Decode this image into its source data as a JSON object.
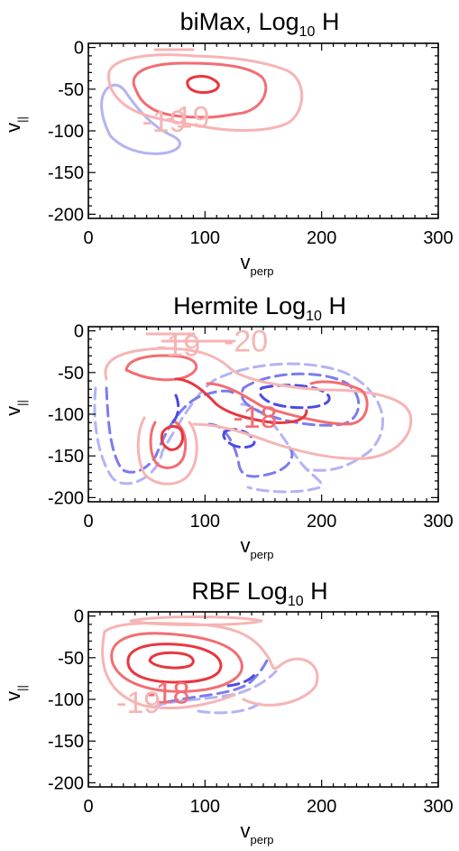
{
  "colors": {
    "positive_strong": "#e8373f",
    "positive_mid": "#f26d72",
    "positive_light": "#f7b4b4",
    "negative_strong": "#4b4be6",
    "negative_mid": "#7c7cee",
    "negative_light": "#b3b3f4"
  },
  "chart_data": [
    {
      "type": "contour",
      "title_main": "biMax, Log",
      "title_sub": "10",
      "title_tail": " H",
      "xlabel_main": "v",
      "xlabel_sub": "perp",
      "ylabel_main": "v",
      "ylabel_sub": "||",
      "xlim": [
        0,
        300
      ],
      "ylim": [
        -205,
        5
      ],
      "xticks": [
        "0",
        "100",
        "200",
        "300"
      ],
      "yticks": [
        "0",
        "-50",
        "-100",
        "-150",
        "-200"
      ],
      "contour_labels": [
        {
          "text": "-19",
          "x": 85,
          "y": -83,
          "level": "light"
        },
        {
          "text": "-19",
          "x": 65,
          "y": -88,
          "level": "light"
        }
      ]
    },
    {
      "type": "contour",
      "title_main": "Hermite Log",
      "title_sub": "10",
      "title_tail": " H",
      "xlabel_main": "v",
      "xlabel_sub": "perp",
      "ylabel_main": "v",
      "ylabel_sub": "||",
      "xlim": [
        0,
        300
      ],
      "ylim": [
        -205,
        5
      ],
      "xticks": [
        "0",
        "100",
        "200",
        "300"
      ],
      "yticks": [
        "0",
        "-50",
        "-100",
        "-150",
        "-200"
      ],
      "contour_labels": [
        {
          "text": "-19",
          "x": 77,
          "y": -17,
          "level": "light"
        },
        {
          "text": "-20",
          "x": 135,
          "y": -12,
          "level": "light"
        },
        {
          "text": "-18",
          "x": 143,
          "y": -103,
          "level": "mid"
        }
      ]
    },
    {
      "type": "contour",
      "title_main": "RBF Log",
      "title_sub": "10",
      "title_tail": " H",
      "xlabel_main": "v",
      "xlabel_sub": "perp",
      "ylabel_main": "v",
      "ylabel_sub": "||",
      "xlim": [
        0,
        300
      ],
      "ylim": [
        -205,
        5
      ],
      "xticks": [
        "0",
        "100",
        "200",
        "300"
      ],
      "yticks": [
        "0",
        "-50",
        "-100",
        "-150",
        "-200"
      ],
      "contour_labels": [
        {
          "text": "-18",
          "x": 68,
          "y": -92,
          "level": "mid"
        },
        {
          "text": "-19",
          "x": 43,
          "y": -103,
          "level": "light"
        }
      ]
    }
  ]
}
